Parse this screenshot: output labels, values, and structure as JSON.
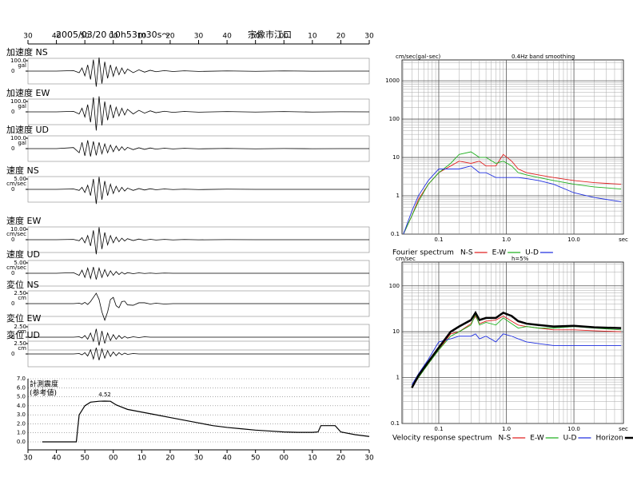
{
  "chart_data": [
    {
      "type": "seismogram",
      "title": "2005/03/20 10h53m30s～",
      "subtitle": "宗像市江口",
      "xlim": [
        0,
        120
      ],
      "xticks": [
        {
          "value": 0,
          "label": "30"
        },
        {
          "value": 10,
          "label": "40"
        },
        {
          "value": 20,
          "label": "50"
        },
        {
          "value": 30,
          "label": "00"
        },
        {
          "value": 40,
          "label": "10"
        },
        {
          "value": 50,
          "label": "20"
        },
        {
          "value": 60,
          "label": "30"
        },
        {
          "value": 70,
          "label": "40"
        },
        {
          "value": 80,
          "label": "50"
        },
        {
          "value": 90,
          "label": "00"
        },
        {
          "value": 100,
          "label": "10"
        },
        {
          "value": 110,
          "label": "20"
        },
        {
          "value": 120,
          "label": "30"
        }
      ],
      "x": [
        0,
        10,
        16,
        18,
        19,
        20,
        21,
        22,
        23,
        24,
        25,
        26,
        27,
        28,
        29,
        30,
        31,
        32,
        33,
        34,
        35,
        37,
        39,
        41,
        43,
        45,
        48,
        51,
        55,
        60,
        70,
        80,
        90,
        100,
        110,
        120
      ],
      "series": [
        {
          "name": "加速度 NS",
          "unit": "gal",
          "color": "#000000",
          "yticks": [
            0,
            {
              "value": 100,
              "label": "100.0"
            }
          ],
          "values": [
            0,
            0,
            5,
            -15,
            30,
            -45,
            60,
            -80,
            110,
            -150,
            130,
            -120,
            90,
            -70,
            60,
            -50,
            40,
            -35,
            30,
            -25,
            20,
            -15,
            12,
            -10,
            8,
            -6,
            5,
            -4,
            3,
            -3,
            2,
            -2,
            2,
            -1,
            0,
            0
          ]
        },
        {
          "name": "加速度 EW",
          "unit": "gal",
          "color": "#000000",
          "yticks": [
            0,
            {
              "value": 100,
              "label": "100.0"
            }
          ],
          "values": [
            0,
            0,
            5,
            -20,
            35,
            -50,
            70,
            -100,
            140,
            -180,
            150,
            -130,
            100,
            -80,
            70,
            -60,
            45,
            -40,
            35,
            -30,
            25,
            -20,
            15,
            -12,
            10,
            -8,
            6,
            -5,
            4,
            -3,
            3,
            -2,
            3,
            -2,
            1,
            0
          ]
        },
        {
          "name": "加速度 UD",
          "unit": "gal",
          "color": "#000000",
          "yticks": [
            0,
            {
              "value": 100,
              "label": "100.0"
            }
          ],
          "values": [
            0,
            0,
            10,
            -40,
            60,
            -70,
            80,
            -75,
            70,
            -65,
            60,
            -50,
            45,
            -40,
            35,
            -30,
            25,
            -20,
            18,
            -15,
            12,
            -10,
            8,
            -7,
            6,
            -5,
            4,
            -3,
            3,
            -2,
            2,
            -2,
            1,
            -1,
            0,
            0
          ]
        },
        {
          "name": "速度 NS",
          "unit": "cm/sec",
          "color": "#000000",
          "yticks": [
            0,
            {
              "value": 5,
              "label": "5.00"
            }
          ],
          "values": [
            0,
            0,
            0.2,
            -0.5,
            1,
            -1.5,
            2,
            -3,
            5,
            -7,
            6,
            -5,
            4,
            -3,
            2.5,
            -2,
            1.5,
            -1.2,
            1,
            -0.8,
            0.6,
            -0.5,
            0.4,
            -0.3,
            0.3,
            -0.2,
            0.2,
            -0.1,
            0.1,
            -0.1,
            0.1,
            0,
            0,
            0,
            0,
            0
          ]
        },
        {
          "name": "速度 EW",
          "unit": "cm/sec",
          "color": "#000000",
          "yticks": [
            0,
            {
              "value": 10,
              "label": "10.00"
            }
          ],
          "values": [
            0,
            0,
            0.3,
            -1,
            2,
            -3,
            4,
            -6,
            9,
            -14,
            12,
            -9,
            7,
            -5,
            4,
            -3,
            2.5,
            -2,
            1.5,
            -1.2,
            1,
            -0.8,
            0.6,
            -0.5,
            0.4,
            -0.3,
            0.3,
            -0.2,
            0.2,
            -0.1,
            0.1,
            0,
            0,
            0,
            0,
            0
          ]
        },
        {
          "name": "速度 UD",
          "unit": "cm/sec",
          "color": "#000000",
          "yticks": [
            0,
            {
              "value": 5,
              "label": "5.00"
            }
          ],
          "values": [
            0,
            0,
            0.3,
            -1,
            1.5,
            -2,
            2.5,
            -2.5,
            3,
            -3,
            2.5,
            -2,
            1.8,
            -1.5,
            1.2,
            -1,
            0.8,
            -0.6,
            0.5,
            -0.4,
            0.3,
            -0.2,
            0.2,
            -0.1,
            0.1,
            -0.1,
            0.1,
            0,
            0,
            0,
            0,
            0,
            0,
            0,
            0,
            0
          ]
        },
        {
          "name": "変位 NS",
          "unit": "cm",
          "color": "#000000",
          "yticks": [
            0,
            {
              "value": 2.5,
              "label": "2.50"
            }
          ],
          "values": [
            0,
            0,
            0,
            0.1,
            -0.1,
            0.3,
            -0.2,
            0.5,
            1.5,
            2.5,
            1,
            -2,
            -4,
            -2,
            1,
            1.5,
            -0.5,
            -1,
            0.5,
            0.6,
            -0.3,
            -0.4,
            0.2,
            0.2,
            -0.1,
            0.1,
            -0.1,
            0,
            0,
            0,
            0,
            0,
            0,
            0,
            0,
            0
          ]
        },
        {
          "name": "変位 EW",
          "unit": "cm",
          "color": "#000000",
          "yticks": [
            0,
            {
              "value": 2.5,
              "label": "2.50"
            }
          ],
          "values": [
            0,
            0,
            0,
            0.1,
            -0.2,
            0.4,
            -0.5,
            1,
            -1,
            2,
            -2,
            1.5,
            -1.5,
            1,
            -0.8,
            0.6,
            -0.5,
            0.4,
            -0.3,
            0.2,
            -0.2,
            0.1,
            -0.1,
            0.1,
            0,
            0,
            0,
            0,
            0,
            0,
            0,
            0,
            0,
            0,
            0,
            0
          ]
        },
        {
          "name": "変位 UD",
          "unit": "cm",
          "color": "#000000",
          "yticks": [
            0,
            {
              "value": 2.5,
              "label": "2.50"
            }
          ],
          "values": [
            0,
            0,
            0,
            0.1,
            -0.2,
            0.3,
            -0.5,
            1,
            -1.2,
            1.5,
            -1.5,
            1.2,
            -1,
            0.8,
            -0.6,
            0.5,
            -0.4,
            0.3,
            -0.2,
            0.2,
            -0.1,
            0.1,
            0,
            0,
            0,
            0,
            0,
            0,
            0,
            0,
            0,
            0,
            0,
            0,
            0,
            0
          ]
        }
      ]
    },
    {
      "type": "line",
      "ylabel": [
        "計測震度",
        "(参考値)"
      ],
      "color": "#000000",
      "xlim": [
        0,
        120
      ],
      "ylim": [
        0,
        7
      ],
      "xticks": [
        {
          "value": 0,
          "label": "30"
        },
        {
          "value": 10,
          "label": "40"
        },
        {
          "value": 20,
          "label": "50"
        },
        {
          "value": 30,
          "label": "00"
        },
        {
          "value": 40,
          "label": "10"
        },
        {
          "value": 50,
          "label": "20"
        },
        {
          "value": 60,
          "label": "30"
        },
        {
          "value": 70,
          "label": "40"
        },
        {
          "value": 80,
          "label": "50"
        },
        {
          "value": 90,
          "label": "00"
        },
        {
          "value": 100,
          "label": "10"
        },
        {
          "value": 110,
          "label": "20"
        },
        {
          "value": 120,
          "label": "30"
        }
      ],
      "yticks": [
        {
          "value": 0,
          "label": "0.0"
        },
        {
          "value": 1,
          "label": "1.0"
        },
        {
          "value": 2,
          "label": "2.0"
        },
        {
          "value": 3,
          "label": "3.0"
        },
        {
          "value": 4,
          "label": "4.0"
        },
        {
          "value": 5,
          "label": "5.0"
        },
        {
          "value": 6,
          "label": "6.0"
        },
        {
          "value": 7,
          "label": "7.0"
        }
      ],
      "grid": true,
      "x": [
        5,
        17,
        17.5,
        18,
        20,
        22,
        25,
        27,
        29,
        31,
        35,
        40,
        45,
        50,
        55,
        60,
        65,
        70,
        75,
        80,
        85,
        90,
        95,
        100,
        102,
        103,
        108,
        110,
        115,
        120
      ],
      "values": [
        0,
        0,
        1.5,
        3,
        4,
        4.4,
        4.5,
        4.52,
        4.5,
        4.1,
        3.6,
        3.3,
        3,
        2.7,
        2.4,
        2.1,
        1.8,
        1.6,
        1.45,
        1.3,
        1.2,
        1.1,
        1.05,
        1.05,
        1.1,
        1.8,
        1.8,
        1.1,
        0.8,
        0.6
      ],
      "annotations": [
        {
          "text": "4.52",
          "x": 27,
          "y": 4.52
        }
      ]
    },
    {
      "type": "line",
      "xlog": true,
      "ylog": true,
      "grid": true,
      "ylabel": "cm/sec(gal･sec)",
      "subtitle": "0.4Hz band smoothing",
      "xlabel": "sec",
      "legend_title": "Fourier spectrum",
      "xlim": [
        0.0286,
        54
      ],
      "ylim": [
        0.1,
        3500
      ],
      "xticks": [
        0.1,
        {
          "value": 1,
          "label": "1.0"
        },
        {
          "value": 10,
          "label": "10.0"
        }
      ],
      "yticks": [
        0.1,
        1,
        10,
        100,
        1000
      ],
      "x": [
        0.03,
        0.04,
        0.05,
        0.07,
        0.1,
        0.15,
        0.2,
        0.3,
        0.4,
        0.5,
        0.7,
        0.9,
        1.2,
        1.5,
        2,
        3,
        5,
        10,
        20,
        50
      ],
      "series": [
        {
          "name": "N-S",
          "color": "#e02020",
          "values": [
            0.1,
            0.3,
            0.8,
            2,
            4,
            6,
            8,
            7,
            8,
            6,
            6,
            12,
            8,
            5,
            4,
            3.5,
            3,
            2.5,
            2.2,
            2
          ]
        },
        {
          "name": "E-W",
          "color": "#20b020",
          "values": [
            0.1,
            0.3,
            0.7,
            2,
            4,
            7,
            12,
            14,
            10,
            10,
            7,
            8,
            6,
            4,
            3.5,
            3,
            2.5,
            2,
            1.7,
            1.5
          ]
        },
        {
          "name": "U-D",
          "color": "#2030e0",
          "values": [
            0.1,
            0.4,
            1,
            2.5,
            5,
            5,
            5,
            6,
            4,
            4,
            3,
            3,
            3,
            3,
            2.8,
            2.5,
            2,
            1.2,
            0.9,
            0.7
          ]
        }
      ]
    },
    {
      "type": "line",
      "xlog": true,
      "ylog": true,
      "grid": true,
      "ylabel": "cm/sec",
      "subtitle": "h=5%",
      "xlabel": "sec",
      "legend_title": "Velocity response spectrum",
      "xlim": [
        0.0286,
        54
      ],
      "ylim": [
        0.1,
        330
      ],
      "xticks": [
        0.1,
        {
          "value": 1,
          "label": "1.0"
        },
        {
          "value": 10,
          "label": "10.0"
        }
      ],
      "yticks": [
        0.1,
        1,
        10,
        100
      ],
      "x": [
        0.04,
        0.05,
        0.07,
        0.1,
        0.15,
        0.2,
        0.3,
        0.35,
        0.4,
        0.5,
        0.7,
        0.9,
        1.2,
        1.5,
        2,
        3,
        5,
        10,
        20,
        50
      ],
      "series": [
        {
          "name": "N-S",
          "color": "#e02020",
          "values": [
            0.6,
            1,
            2,
            4,
            9,
            10,
            15,
            22,
            15,
            17,
            18,
            22,
            17,
            14,
            13,
            12,
            11,
            11,
            10.5,
            10
          ]
        },
        {
          "name": "E-W",
          "color": "#20b020",
          "values": [
            0.6,
            1,
            2,
            4,
            8,
            10,
            14,
            24,
            14,
            16,
            14,
            20,
            15,
            12,
            13,
            12,
            12,
            13,
            12,
            11
          ]
        },
        {
          "name": "U-D",
          "color": "#2030e0",
          "values": [
            0.7,
            1.2,
            2.5,
            6,
            7,
            8,
            8,
            9,
            7,
            8,
            6,
            9,
            8,
            7,
            6,
            5.5,
            5,
            5,
            5,
            5
          ]
        },
        {
          "name": "Horizon",
          "color": "#000000",
          "width": 2.5,
          "values": [
            0.6,
            1.1,
            2.2,
            4.5,
            10,
            13,
            18,
            26,
            18,
            20,
            20,
            26,
            22,
            17,
            15,
            14,
            13,
            13.5,
            12.5,
            12
          ]
        }
      ]
    }
  ]
}
